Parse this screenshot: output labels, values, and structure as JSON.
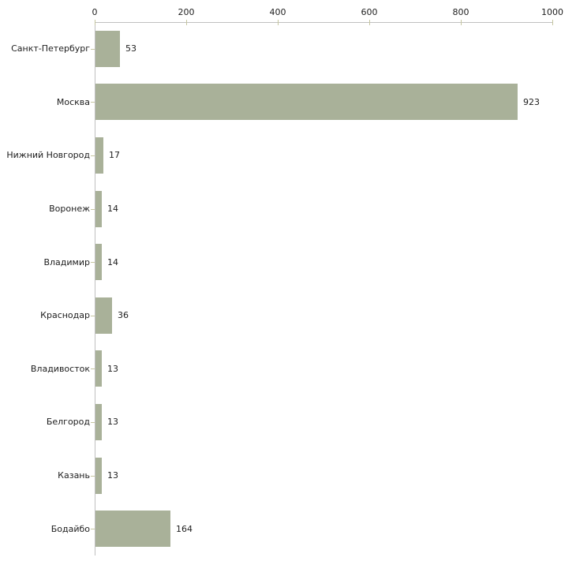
{
  "chart_data": {
    "type": "bar",
    "orientation": "horizontal",
    "categories": [
      "Санкт-Петербург",
      "Москва",
      "Нижний Новгород",
      "Воронеж",
      "Владимир",
      "Краснодар",
      "Владивосток",
      "Белгород",
      "Казань",
      "Бодайбо"
    ],
    "values": [
      53,
      923,
      17,
      14,
      14,
      36,
      13,
      13,
      13,
      164
    ],
    "value_labels": [
      "53",
      "923",
      "17",
      "14",
      "14",
      "36",
      "13",
      "13",
      "13",
      "164"
    ],
    "x_axis": {
      "position": "top",
      "min": 0,
      "max": 1000,
      "ticks": [
        0,
        200,
        400,
        600,
        800,
        1000
      ],
      "tick_labels": [
        "0",
        "200",
        "400",
        "600",
        "800",
        "1000"
      ]
    },
    "grid": false,
    "legend": false,
    "colors": {
      "bar": "#a9b199",
      "axis_line": "#c0c0c0",
      "tick_mark": "#c6c6a0",
      "text": "#1d1d1d",
      "background": "#ffffff"
    }
  }
}
